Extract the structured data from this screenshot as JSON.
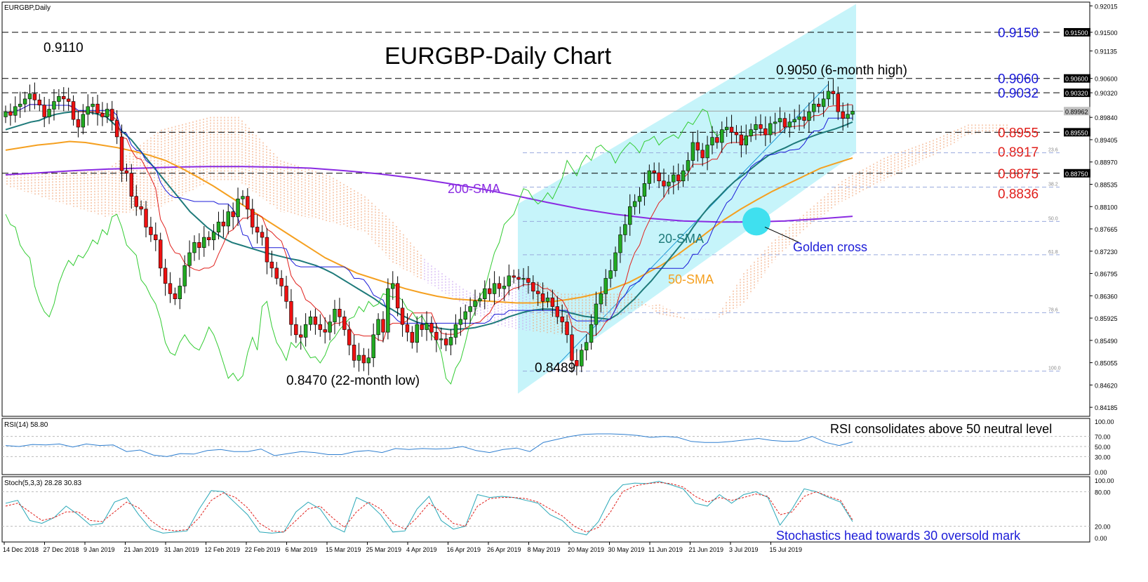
{
  "window": {
    "title": "EURGBP,Daily"
  },
  "chart_data": [
    {
      "type": "candlestick",
      "title": "EURGBP-Daily Chart",
      "symbol": "EURGBP",
      "timeframe": "Daily",
      "ylim": [
        0.8405,
        0.9202
      ],
      "y_ticks": [
        "0.92015",
        "0.91500",
        "0.91135",
        "0.90600",
        "0.90320",
        "0.89840",
        "0.89405",
        "0.88970",
        "0.88535",
        "0.88100",
        "0.87665",
        "0.87230",
        "0.86795",
        "0.86360",
        "0.85925",
        "0.85490",
        "0.85055",
        "0.84620",
        "0.84185"
      ],
      "x_labels": [
        "14 Dec 2018",
        "27 Dec 2018",
        "9 Jan 2019",
        "21 Jan 2019",
        "31 Jan 2019",
        "12 Feb 2019",
        "22 Feb 2019",
        "6 Mar 2019",
        "15 Mar 2019",
        "25 Mar 2019",
        "4 Apr 2019",
        "16 Apr 2019",
        "26 Apr 2019",
        "8 May 2019",
        "20 May 2019",
        "30 May 2019",
        "11 Jun 2019",
        "21 Jun 2019",
        "3 Jul 2019",
        "15 Jul 2019"
      ],
      "current_price": "0.89962",
      "current_price_value": 0.89962,
      "key_levels": [
        {
          "label": "0.9150",
          "value": 0.915,
          "tag": "0.91500",
          "color": "#1c1cd8"
        },
        {
          "label": "0.9060",
          "value": 0.906,
          "tag": "0.90600",
          "color": "#1c1cd8"
        },
        {
          "label": "0.9032",
          "value": 0.9032,
          "tag": "0.90320",
          "color": "#1c1cd8"
        },
        {
          "label": "0.8955",
          "value": 0.8955,
          "tag": "0.89550",
          "color": "#e0201c"
        },
        {
          "label": "0.8917",
          "value": 0.8917,
          "tag": "",
          "color": "#e0201c"
        },
        {
          "label": "0.8875",
          "value": 0.8875,
          "tag": "0.88750",
          "color": "#e0201c"
        },
        {
          "label": "0.8836",
          "value": 0.8836,
          "tag": "",
          "color": "#e0201c"
        }
      ],
      "fibonacci": [
        {
          "label": "23.6",
          "value": 0.8915
        },
        {
          "label": "38.2",
          "value": 0.8848
        },
        {
          "label": "50.0",
          "value": 0.8781
        },
        {
          "label": "61.8",
          "value": 0.8716
        },
        {
          "label": "78.6",
          "value": 0.8603
        },
        {
          "label": "100.0",
          "value": 0.8489
        }
      ],
      "annotations": {
        "high_2018": "0.9110",
        "low_22m": "0.8470 (22-month low)",
        "low_may": "0.8489",
        "high_6m": "0.9050 (6-month high)",
        "sma200": "200-SMA",
        "sma20": "20-SMA",
        "sma50": "50-SMA",
        "golden_cross": "Golden cross"
      },
      "series_close": [
        0.8995,
        0.8988,
        0.9005,
        0.901,
        0.902,
        0.903,
        0.9018,
        0.9008,
        0.8985,
        0.9,
        0.9015,
        0.9025,
        0.902,
        0.9015,
        0.898,
        0.8965,
        0.899,
        0.9005,
        0.901,
        0.8992,
        0.8985,
        0.9,
        0.8978,
        0.8946,
        0.888,
        0.8875,
        0.883,
        0.881,
        0.8805,
        0.877,
        0.8755,
        0.8745,
        0.869,
        0.866,
        0.864,
        0.863,
        0.8655,
        0.8695,
        0.872,
        0.874,
        0.873,
        0.875,
        0.8745,
        0.876,
        0.878,
        0.8772,
        0.88,
        0.879,
        0.8825,
        0.883,
        0.8805,
        0.877,
        0.876,
        0.875,
        0.8702,
        0.869,
        0.867,
        0.8655,
        0.8625,
        0.858,
        0.856,
        0.8555,
        0.858,
        0.8595,
        0.858,
        0.857,
        0.8565,
        0.8585,
        0.861,
        0.8595,
        0.857,
        0.854,
        0.851,
        0.852,
        0.8505,
        0.8515,
        0.856,
        0.859,
        0.8565,
        0.865,
        0.866,
        0.8612,
        0.858,
        0.8565,
        0.8545,
        0.858,
        0.857,
        0.8582,
        0.8565,
        0.855,
        0.8552,
        0.854,
        0.8555,
        0.858,
        0.859,
        0.8605,
        0.8615,
        0.8626,
        0.863,
        0.865,
        0.864,
        0.866,
        0.865,
        0.8655,
        0.8675,
        0.8672,
        0.8668,
        0.867,
        0.8662,
        0.8645,
        0.864,
        0.8625,
        0.8632,
        0.8615,
        0.8595,
        0.8585,
        0.856,
        0.851,
        0.8499,
        0.853,
        0.8545,
        0.858,
        0.862,
        0.864,
        0.867,
        0.8685,
        0.872,
        0.8755,
        0.8775,
        0.881,
        0.882,
        0.883,
        0.8855,
        0.888,
        0.8876,
        0.886,
        0.885,
        0.8858,
        0.8872,
        0.886,
        0.888,
        0.89,
        0.8935,
        0.892,
        0.8905,
        0.893,
        0.8945,
        0.8935,
        0.896,
        0.8965,
        0.8955,
        0.895,
        0.893,
        0.8948,
        0.896,
        0.897,
        0.8962,
        0.895,
        0.8972,
        0.8975,
        0.8982,
        0.8965,
        0.8975,
        0.898,
        0.8985,
        0.8978,
        0.8995,
        0.901,
        0.9005,
        0.902,
        0.9035,
        0.903,
        0.8995,
        0.8982,
        0.899,
        0.8996
      ],
      "sma20": [
        0.896,
        0.8965,
        0.897,
        0.8975,
        0.8978,
        0.8985,
        0.899,
        0.8993,
        0.8995,
        0.8996,
        0.8994,
        0.899,
        0.8985,
        0.897,
        0.8955,
        0.894,
        0.892,
        0.89,
        0.888,
        0.886,
        0.884,
        0.882,
        0.88,
        0.8785,
        0.877,
        0.8758,
        0.8748,
        0.874,
        0.8735,
        0.873,
        0.8725,
        0.872,
        0.8716,
        0.8712,
        0.8708,
        0.8705,
        0.87,
        0.8695,
        0.8688,
        0.868,
        0.867,
        0.866,
        0.865,
        0.864,
        0.863,
        0.8618,
        0.861,
        0.86,
        0.8592,
        0.8585,
        0.858,
        0.8575,
        0.8572,
        0.857,
        0.8571,
        0.8572,
        0.8574,
        0.8578,
        0.8582,
        0.8588,
        0.8595,
        0.86,
        0.8605,
        0.8608,
        0.861,
        0.861,
        0.8608,
        0.8604,
        0.86,
        0.8596,
        0.8594,
        0.8592,
        0.859,
        0.86,
        0.8615,
        0.863,
        0.8648,
        0.8665,
        0.8685,
        0.8705,
        0.8725,
        0.8745,
        0.877,
        0.8792,
        0.8812,
        0.8828,
        0.8845,
        0.886,
        0.8872,
        0.8885,
        0.8898,
        0.891,
        0.8918,
        0.8925,
        0.8933,
        0.894,
        0.8946,
        0.8952,
        0.8957,
        0.8962,
        0.8968,
        0.8975
      ],
      "sma50": [
        0.892,
        0.8925,
        0.893,
        0.8933,
        0.8937,
        0.8935,
        0.893,
        0.8925,
        0.8918,
        0.891,
        0.89,
        0.8885,
        0.8868,
        0.885,
        0.883,
        0.881,
        0.879,
        0.877,
        0.875,
        0.873,
        0.871,
        0.8695,
        0.868,
        0.867,
        0.866,
        0.865,
        0.8642,
        0.8635,
        0.863,
        0.8628,
        0.8626,
        0.8624,
        0.8622,
        0.8622,
        0.8624,
        0.8628,
        0.8633,
        0.864,
        0.865,
        0.8662,
        0.8678,
        0.8695,
        0.8715,
        0.8738,
        0.8762,
        0.8785,
        0.8805,
        0.8823,
        0.884,
        0.8855,
        0.887,
        0.8885,
        0.8895,
        0.8905
      ],
      "sma200": [
        0.8872,
        0.8876,
        0.888,
        0.8883,
        0.8885,
        0.8887,
        0.8888,
        0.8888,
        0.8887,
        0.8885,
        0.888,
        0.8874,
        0.8866,
        0.8856,
        0.8845,
        0.8832,
        0.8818,
        0.8805,
        0.8795,
        0.8787,
        0.8782,
        0.878,
        0.878,
        0.8782,
        0.8786,
        0.8791
      ]
    },
    {
      "type": "line",
      "title": "RSI(14) 58.80",
      "annotation": "RSI consolidates above 50 neutral level",
      "ylim": [
        0,
        100
      ],
      "y_ticks": [
        "100.00",
        "70.00",
        "50.00",
        "30.00",
        "0.00"
      ],
      "levels": [
        70,
        50,
        30
      ],
      "values": [
        52,
        50,
        54,
        53,
        55,
        49,
        55,
        52,
        53,
        40,
        43,
        33,
        30,
        36,
        35,
        42,
        44,
        40,
        40,
        45,
        32,
        36,
        40,
        38,
        34,
        34,
        40,
        42,
        38,
        46,
        44,
        46,
        45,
        46,
        50,
        42,
        38,
        44,
        47,
        40,
        58,
        64,
        70,
        74,
        75,
        75,
        74,
        72,
        68,
        70,
        68,
        60,
        58,
        58,
        60,
        63,
        66,
        62,
        60,
        61,
        70,
        58,
        52,
        59
      ]
    },
    {
      "type": "line",
      "title": "Stoch(5,3,3) 28.28 30.83",
      "annotation": "Stochastics head towards 30 oversold mark",
      "ylim": [
        0,
        100
      ],
      "y_ticks": [
        "100.00",
        "80.00",
        "20.00",
        "0.00"
      ],
      "levels": [
        80,
        20
      ],
      "series": [
        {
          "values": [
            60,
            65,
            30,
            25,
            35,
            55,
            40,
            22,
            25,
            62,
            70,
            40,
            15,
            8,
            10,
            12,
            50,
            82,
            80,
            60,
            40,
            10,
            8,
            10,
            45,
            62,
            50,
            20,
            10,
            70,
            60,
            40,
            10,
            12,
            50,
            72,
            30,
            15,
            20,
            75,
            70,
            72,
            70,
            65,
            60,
            40,
            30,
            10,
            5,
            28,
            70,
            92,
            95,
            94,
            98,
            92,
            85,
            60,
            55,
            75,
            60,
            75,
            80,
            70,
            22,
            50,
            85,
            80,
            70,
            62,
            28
          ]
        },
        {
          "values": [
            55,
            60,
            45,
            30,
            35,
            45,
            45,
            30,
            28,
            45,
            62,
            52,
            30,
            15,
            12,
            14,
            35,
            65,
            78,
            70,
            52,
            25,
            12,
            10,
            30,
            50,
            55,
            35,
            18,
            45,
            62,
            50,
            25,
            15,
            35,
            60,
            45,
            25,
            20,
            55,
            68,
            70,
            70,
            68,
            62,
            50,
            38,
            20,
            10,
            18,
            45,
            80,
            90,
            94,
            96,
            94,
            88,
            72,
            62,
            70,
            65,
            70,
            76,
            72,
            40,
            45,
            72,
            80,
            72,
            65,
            31
          ]
        }
      ]
    }
  ],
  "colors": {
    "channel": "#b3f0f8",
    "cloud": "#f0a070",
    "cloud_bull": "#c8a0f0",
    "sma20": "#1e7a7a",
    "sma50": "#f5a020",
    "sma200": "#8a2be2",
    "tenkan": "#e0201c",
    "kijun": "#1c1cd8",
    "chikou": "#33cc33",
    "golden_cross": "#3fe0ef",
    "rsi": "#2f7fd0",
    "stoch_main": "#2aa8b8",
    "stoch_signal": "#e0201c"
  }
}
